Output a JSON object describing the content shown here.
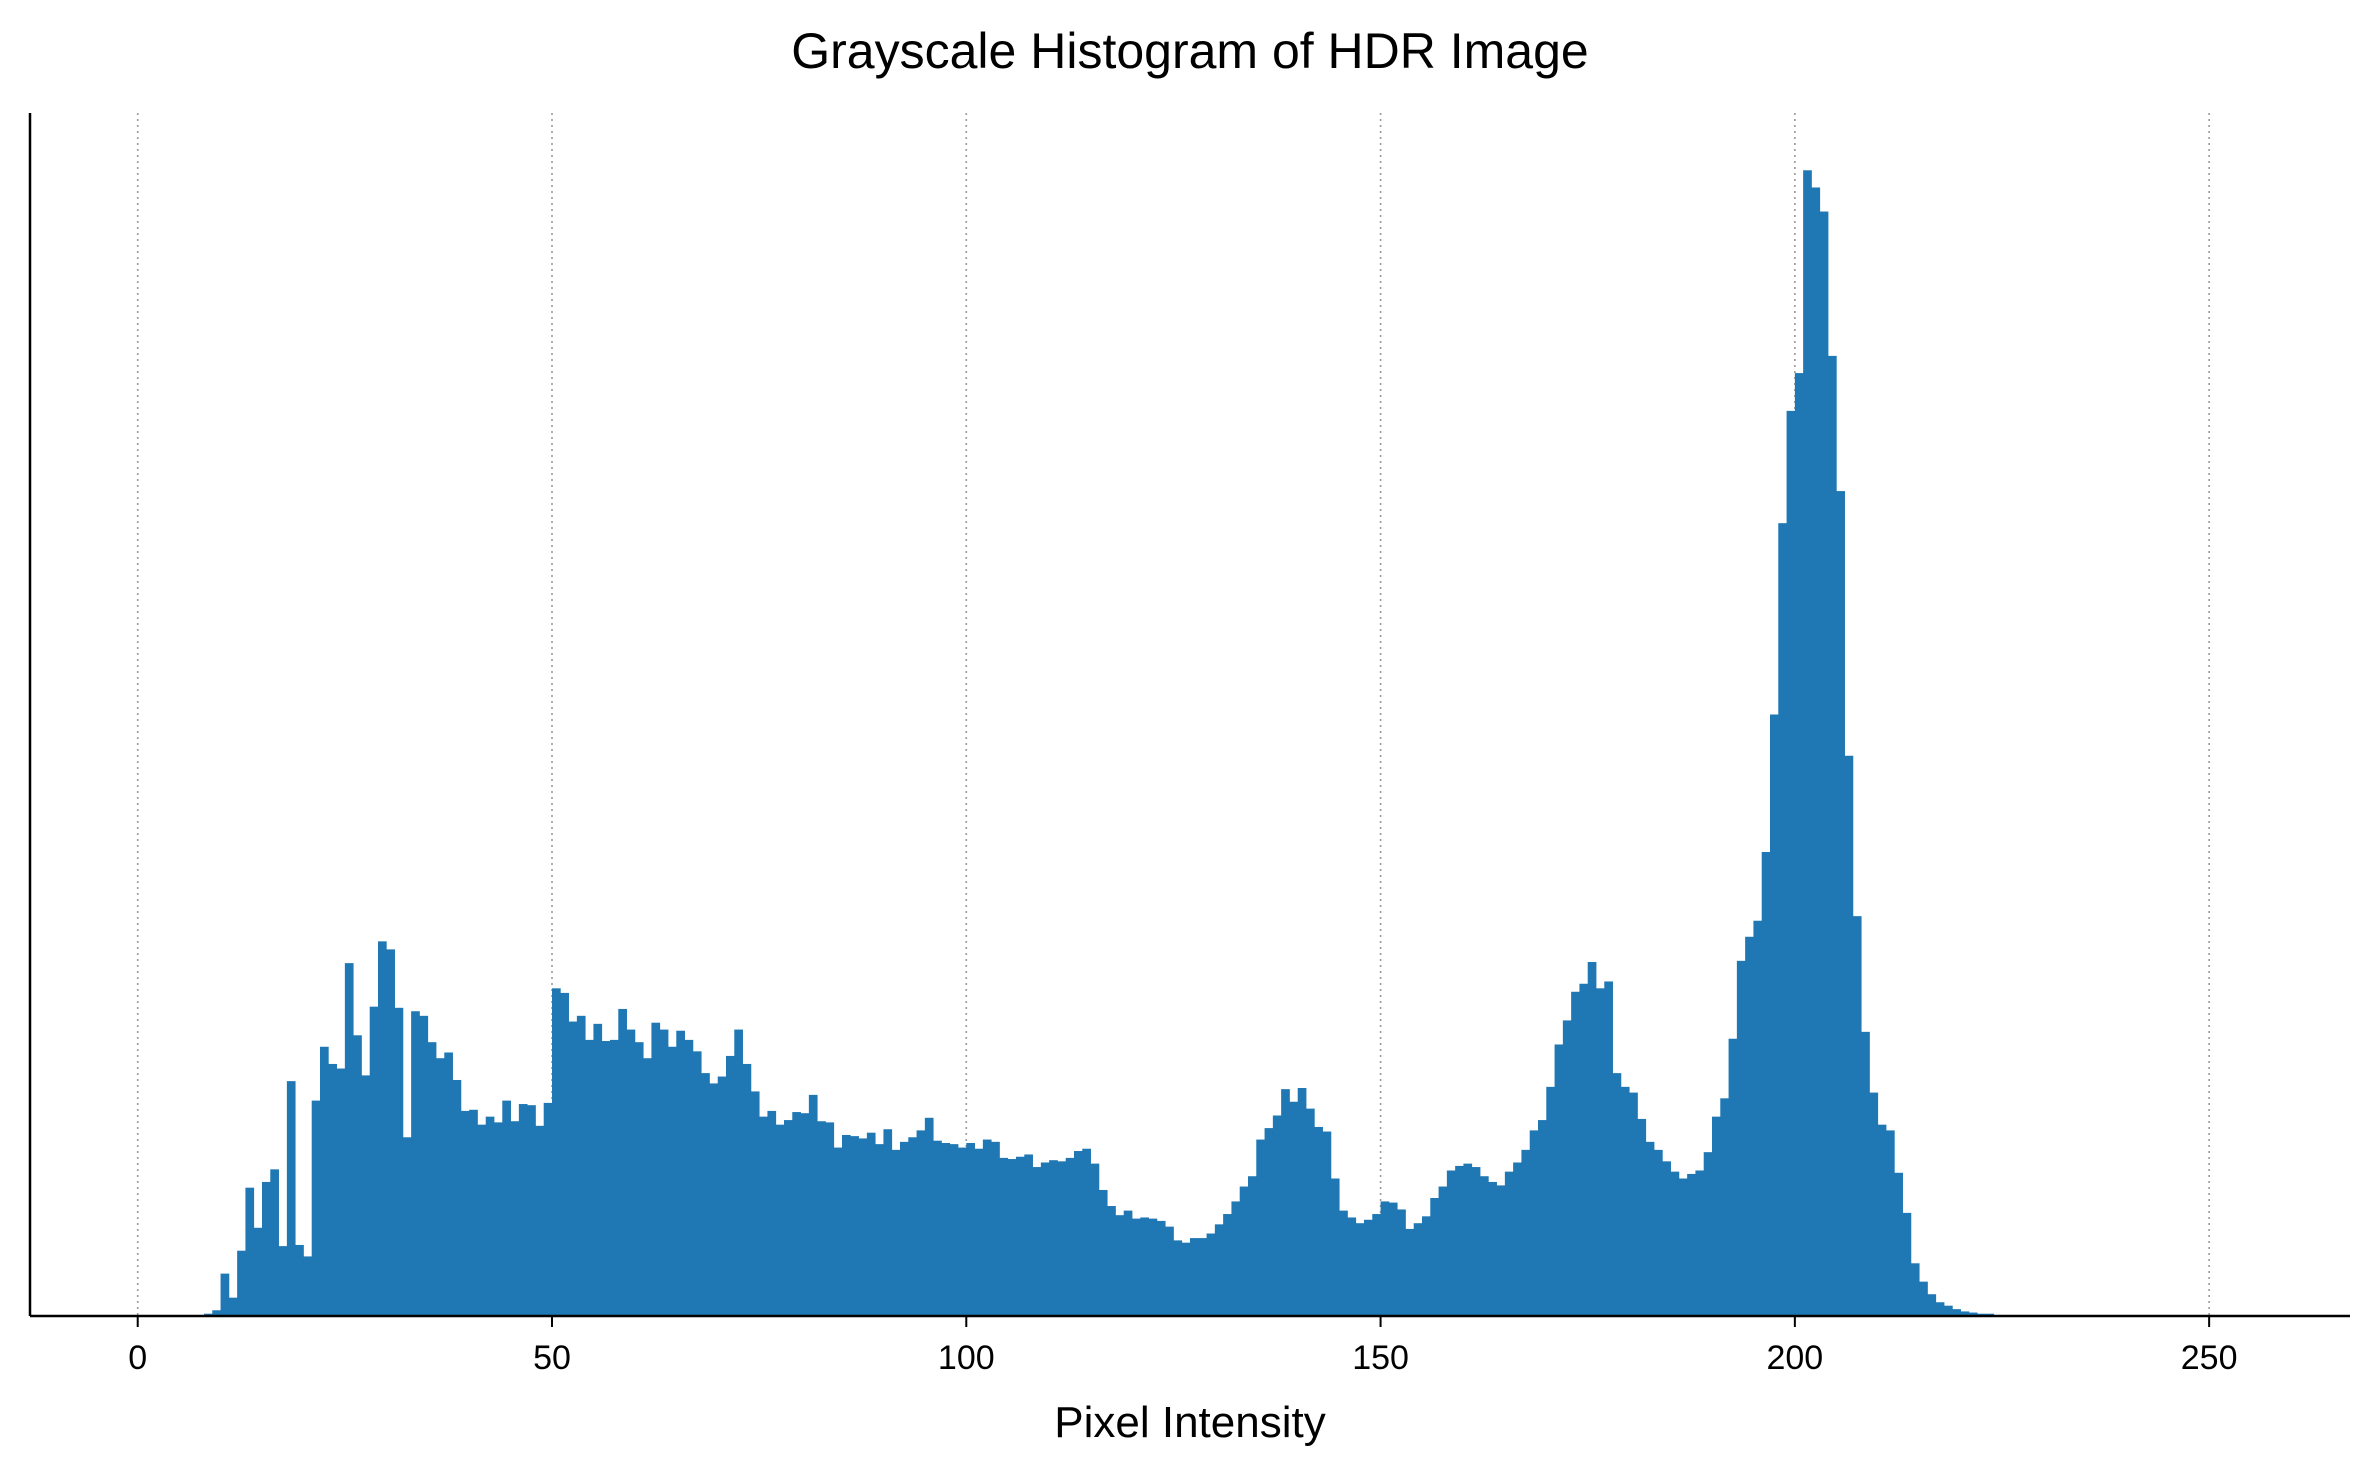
{
  "chart_data": {
    "type": "bar",
    "title": "Grayscale Histogram of HDR Image",
    "xlabel": "Pixel Intensity",
    "ylabel": "",
    "xlim": [
      -13,
      267
    ],
    "ylim": [
      0,
      1.05
    ],
    "xticks": [
      0,
      50,
      100,
      150,
      200,
      250
    ],
    "grid": "vertical dotted",
    "bar_color": "#1f77b4",
    "bin_start": 0,
    "bin_width": 1,
    "values": [
      0,
      0,
      0,
      0,
      0,
      0,
      0,
      0,
      0.002,
      0.005,
      0.037,
      0.016,
      0.057,
      0.112,
      0.077,
      0.117,
      0.128,
      0.061,
      0.205,
      0.062,
      0.052,
      0.188,
      0.235,
      0.22,
      0.216,
      0.308,
      0.245,
      0.21,
      0.27,
      0.327,
      0.32,
      0.269,
      0.156,
      0.266,
      0.262,
      0.239,
      0.225,
      0.23,
      0.206,
      0.179,
      0.18,
      0.167,
      0.174,
      0.169,
      0.188,
      0.17,
      0.185,
      0.184,
      0.166,
      0.186,
      0.286,
      0.282,
      0.257,
      0.262,
      0.241,
      0.255,
      0.24,
      0.241,
      0.268,
      0.25,
      0.239,
      0.225,
      0.256,
      0.25,
      0.235,
      0.249,
      0.241,
      0.231,
      0.212,
      0.203,
      0.209,
      0.227,
      0.25,
      0.22,
      0.196,
      0.174,
      0.179,
      0.167,
      0.171,
      0.178,
      0.177,
      0.193,
      0.17,
      0.169,
      0.147,
      0.158,
      0.157,
      0.155,
      0.16,
      0.15,
      0.163,
      0.145,
      0.152,
      0.156,
      0.162,
      0.173,
      0.153,
      0.151,
      0.15,
      0.147,
      0.151,
      0.146,
      0.154,
      0.152,
      0.138,
      0.137,
      0.139,
      0.141,
      0.13,
      0.134,
      0.136,
      0.135,
      0.138,
      0.144,
      0.146,
      0.133,
      0.11,
      0.096,
      0.088,
      0.092,
      0.085,
      0.086,
      0.085,
      0.083,
      0.078,
      0.066,
      0.064,
      0.068,
      0.068,
      0.072,
      0.08,
      0.089,
      0.1,
      0.113,
      0.122,
      0.154,
      0.164,
      0.175,
      0.198,
      0.187,
      0.199,
      0.181,
      0.165,
      0.161,
      0.12,
      0.092,
      0.086,
      0.081,
      0.084,
      0.089,
      0.1,
      0.099,
      0.093,
      0.076,
      0.081,
      0.087,
      0.103,
      0.113,
      0.127,
      0.131,
      0.133,
      0.13,
      0.122,
      0.117,
      0.114,
      0.126,
      0.134,
      0.145,
      0.162,
      0.171,
      0.2,
      0.237,
      0.258,
      0.283,
      0.29,
      0.309,
      0.286,
      0.292,
      0.212,
      0.2,
      0.195,
      0.172,
      0.152,
      0.145,
      0.135,
      0.126,
      0.12,
      0.124,
      0.127,
      0.143,
      0.174,
      0.19,
      0.242,
      0.31,
      0.331,
      0.345,
      0.405,
      0.525,
      0.692,
      0.79,
      0.823,
      1.0,
      0.985,
      0.964,
      0.838,
      0.72,
      0.489,
      0.349,
      0.248,
      0.195,
      0.167,
      0.162,
      0.125,
      0.09,
      0.046,
      0.03,
      0.019,
      0.012,
      0.009,
      0.006,
      0.004,
      0.003,
      0.002,
      0.002,
      0,
      0,
      0,
      0,
      0,
      0,
      0,
      0,
      0,
      0,
      0,
      0,
      0,
      0,
      0,
      0,
      0,
      0,
      0,
      0,
      0,
      0,
      0
    ]
  }
}
